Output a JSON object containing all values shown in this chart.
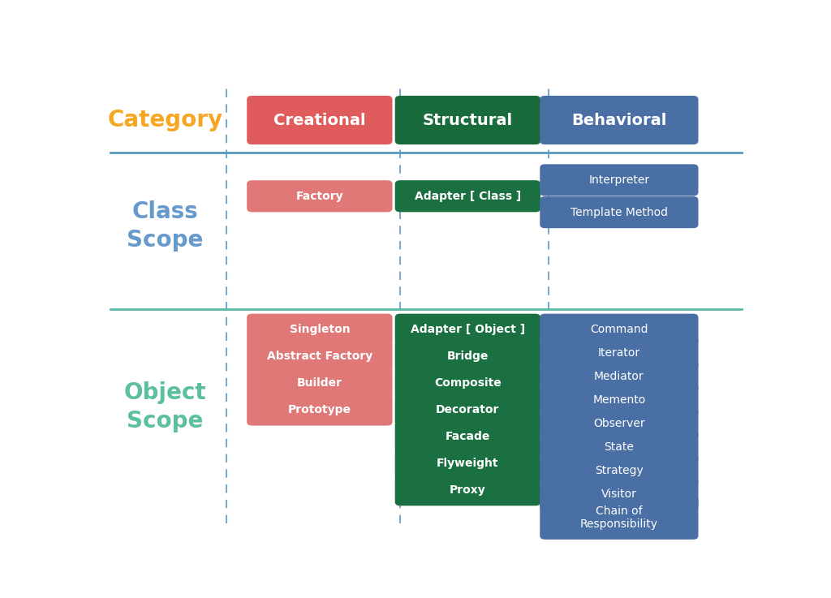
{
  "background_color": "#ffffff",
  "title_color": "#f5a623",
  "class_scope_color": "#6699cc",
  "object_scope_color": "#5bbfa0",
  "creational_header_color": "#e05c5c",
  "structural_header_color": "#1a6b3c",
  "behavioral_header_color": "#4a6fa5",
  "creational_item_color": "#e07878",
  "structural_item_color": "#1a7040",
  "behavioral_item_color": "#4a6fa5",
  "dashed_line_color": "#7aaad0",
  "header_row_line_color": "#5599bb",
  "class_scope_line_color": "#55bbaa",
  "text_color": "#ffffff",
  "category_label": "Category",
  "class_scope_label": "Class\nScope",
  "object_scope_label": "Object\nScope",
  "col_headers": [
    "Creational",
    "Structural",
    "Behavioral"
  ],
  "col_header_colors": [
    "#e05c5c",
    "#1a6b3c",
    "#4a6fa5"
  ],
  "class_scope_creational": [
    "Factory"
  ],
  "class_scope_structural": [
    "Adapter [ Class ]"
  ],
  "class_scope_behavioral": [
    "Interpreter",
    "Template Method"
  ],
  "object_scope_creational": [
    "Singleton",
    "Abstract Factory",
    "Builder",
    "Prototype"
  ],
  "object_scope_structural": [
    "Adapter [ Object ]",
    "Bridge",
    "Composite",
    "Decorator",
    "Facade",
    "Flyweight",
    "Proxy"
  ],
  "object_scope_behavioral": [
    "Command",
    "Iterator",
    "Mediator",
    "Memento",
    "Observer",
    "State",
    "Strategy",
    "Visitor",
    "Chain of\nResponsibility"
  ],
  "figsize": [
    10.24,
    7.37
  ],
  "dpi": 100
}
